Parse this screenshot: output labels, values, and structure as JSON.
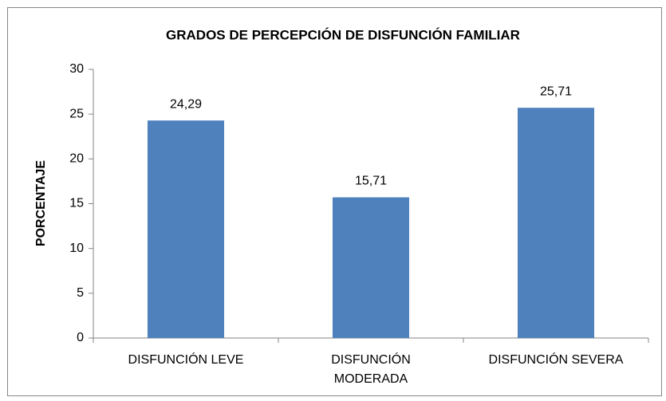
{
  "chart_data": {
    "type": "bar",
    "title": "GRADOS DE PERCEPCIÓN DE DISFUNCIÓN FAMILIAR",
    "y_label": "PORCENTAJE",
    "categories": [
      "DISFUNCIÓN LEVE",
      "DISFUNCIÓN MODERADA",
      "DISFUNCIÓN SEVERA"
    ],
    "values": [
      24.29,
      15.71,
      25.71
    ],
    "value_labels": [
      "24,29",
      "15,71",
      "25,71"
    ],
    "color": "#4f81bd",
    "ylim": [
      0,
      30
    ],
    "yticks": [
      0,
      5,
      10,
      15,
      20,
      25,
      30
    ],
    "grid": false
  }
}
